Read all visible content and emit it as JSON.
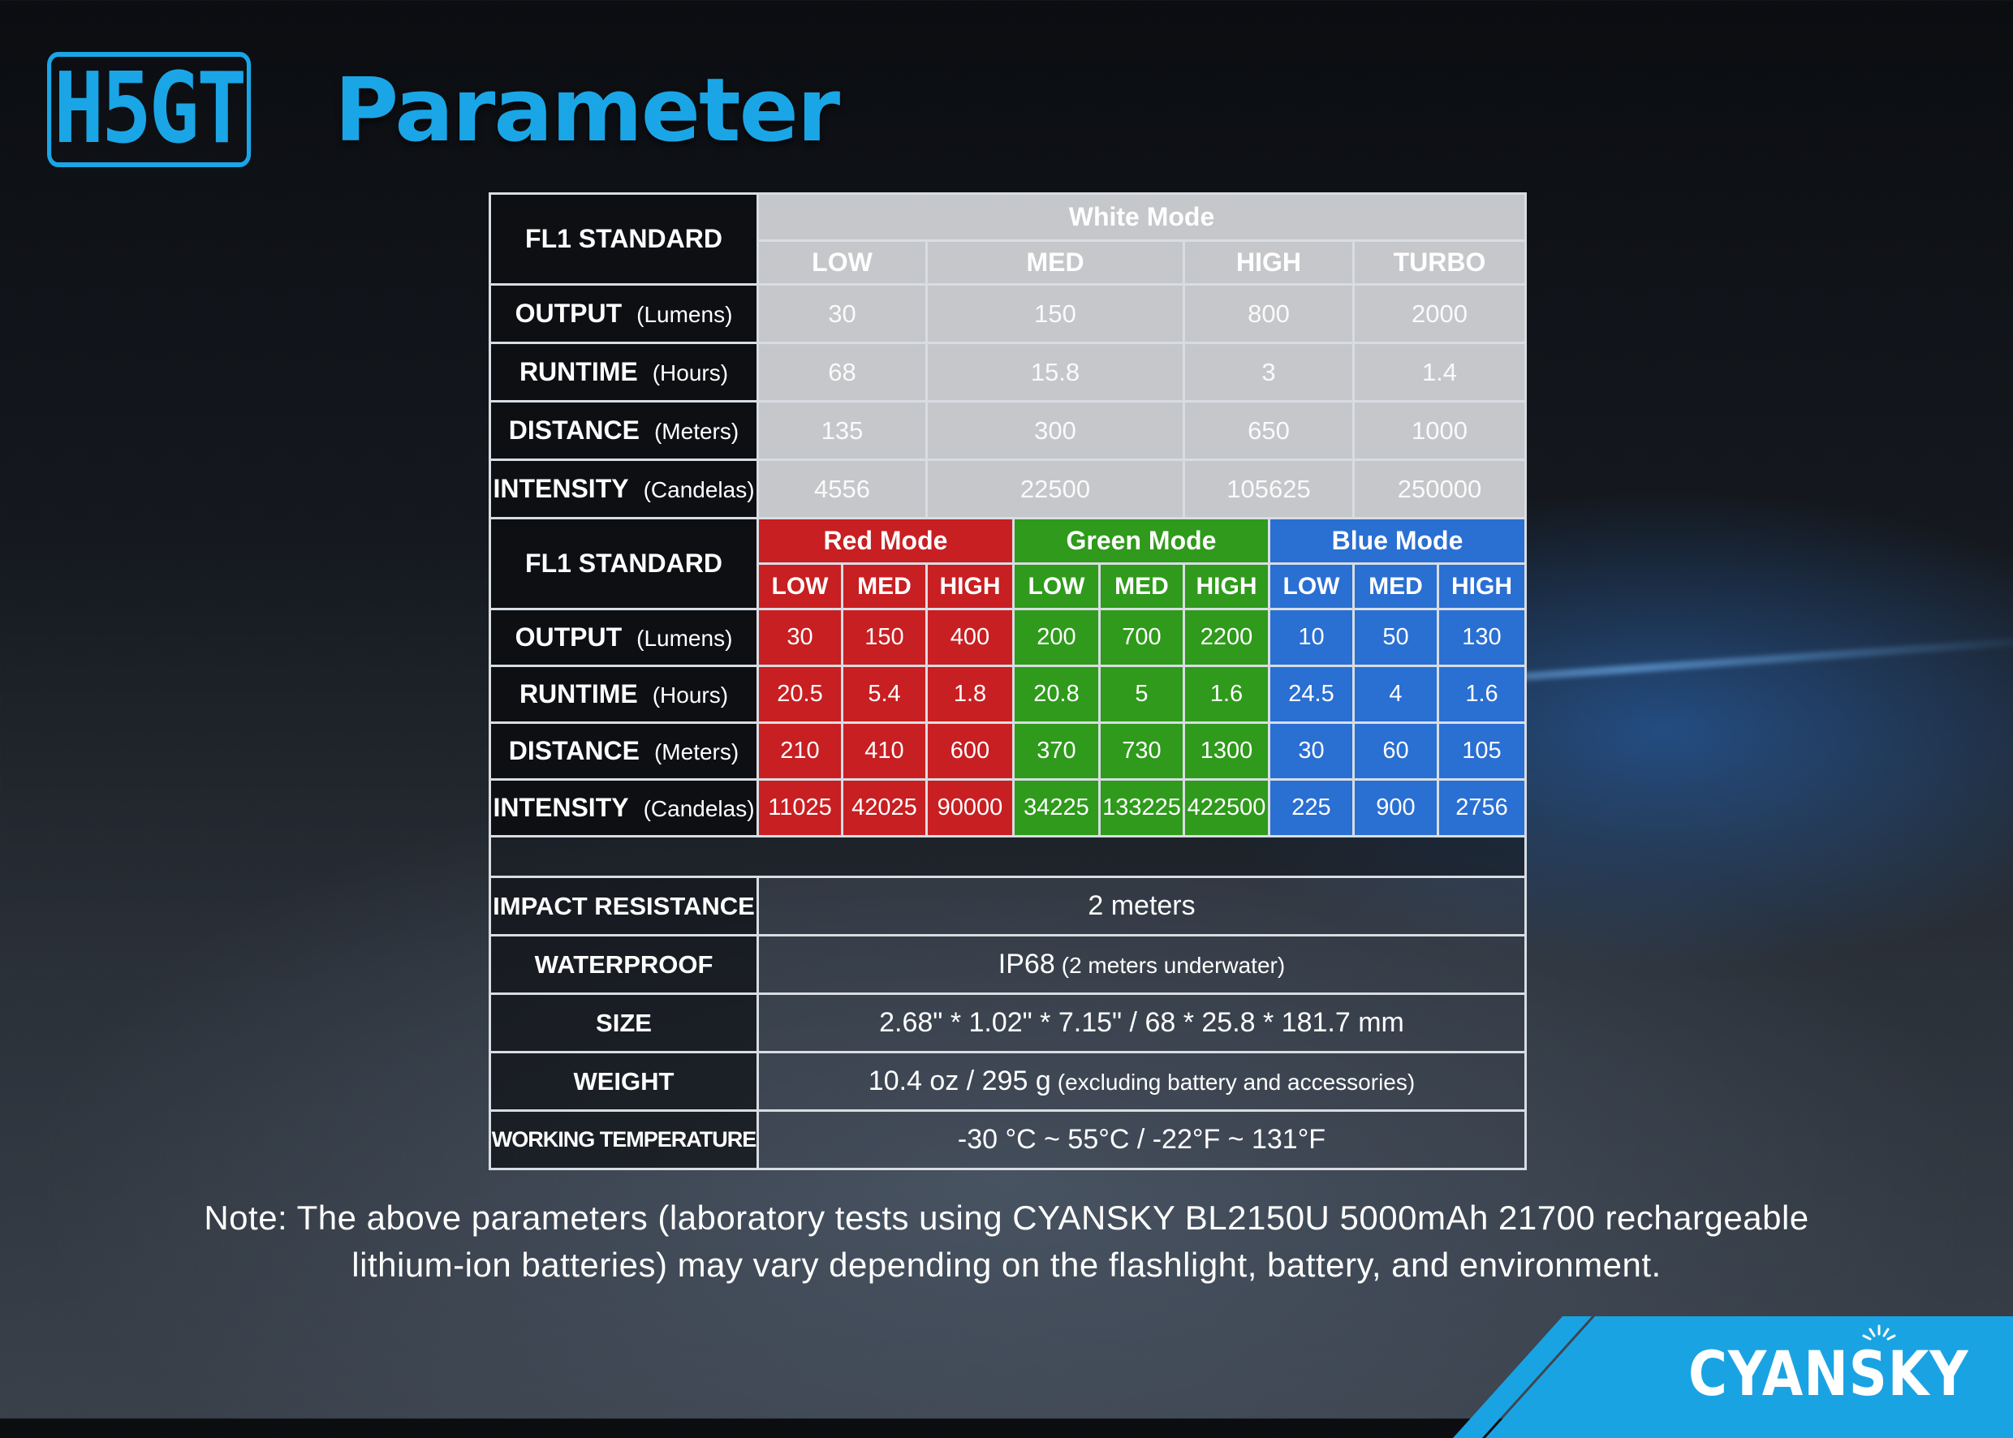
{
  "header": {
    "model": "H5GT",
    "title": "Parameter"
  },
  "table1": {
    "standard": "FL1 STANDARD",
    "mode": "White Mode",
    "levels": [
      "LOW",
      "MED",
      "HIGH",
      "TURBO"
    ],
    "rows": [
      {
        "label": "OUTPUT",
        "unit": "(Lumens)",
        "values": [
          "30",
          "150",
          "800",
          "2000"
        ]
      },
      {
        "label": "RUNTIME",
        "unit": "(Hours)",
        "values": [
          "68",
          "15.8",
          "3",
          "1.4"
        ]
      },
      {
        "label": "DISTANCE",
        "unit": "(Meters)",
        "values": [
          "135",
          "300",
          "650",
          "1000"
        ]
      },
      {
        "label": "INTENSITY",
        "unit": "(Candelas)",
        "values": [
          "4556",
          "22500",
          "105625",
          "250000"
        ]
      }
    ]
  },
  "table2": {
    "standard": "FL1 STANDARD",
    "modes": [
      {
        "name": "Red Mode",
        "color": "#c81f22"
      },
      {
        "name": "Green Mode",
        "color": "#2f9a1b"
      },
      {
        "name": "Blue Mode",
        "color": "#2a6fd2"
      }
    ],
    "levels": [
      "LOW",
      "MED",
      "HIGH",
      "LOW",
      "MED",
      "HIGH",
      "LOW",
      "MED",
      "HIGH"
    ],
    "rows": [
      {
        "label": "OUTPUT",
        "unit": "(Lumens)",
        "values": [
          "30",
          "150",
          "400",
          "200",
          "700",
          "2200",
          "10",
          "50",
          "130"
        ]
      },
      {
        "label": "RUNTIME",
        "unit": "(Hours)",
        "values": [
          "20.5",
          "5.4",
          "1.8",
          "20.8",
          "5",
          "1.6",
          "24.5",
          "4",
          "1.6"
        ]
      },
      {
        "label": "DISTANCE",
        "unit": "(Meters)",
        "values": [
          "210",
          "410",
          "600",
          "370",
          "730",
          "1300",
          "30",
          "60",
          "105"
        ]
      },
      {
        "label": "INTENSITY",
        "unit": "(Candelas)",
        "values": [
          "11025",
          "42025",
          "90000",
          "34225",
          "133225",
          "422500",
          "225",
          "900",
          "2756"
        ]
      }
    ]
  },
  "properties": [
    {
      "label": "IMPACT RESISTANCE",
      "value": "2 meters",
      "sub": ""
    },
    {
      "label": "WATERPROOF",
      "value": "IP68",
      "sub": "(2 meters underwater)"
    },
    {
      "label": "SIZE",
      "value": "2.68\" * 1.02\" * 7.15\" / 68 * 25.8 * 181.7 mm",
      "sub": ""
    },
    {
      "label": "WEIGHT",
      "value": "10.4 oz / 295 g",
      "sub": "(excluding battery and accessories)"
    },
    {
      "label": "WORKING TEMPERATURE",
      "value": "-30 °C ~ 55°C / -22°F ~ 131°F",
      "sub": ""
    }
  ],
  "note": {
    "line1": "Note: The above parameters (laboratory tests using CYANSKY BL2150U 5000mAh 21700 rechargeable",
    "line2": "lithium-ion batteries) may vary depending on the flashlight, battery, and environment."
  },
  "brand": "CYANSKY",
  "colors": {
    "accent": "#1aa6e6",
    "white_mode": "#c5c7ca",
    "red": "#c81f22",
    "green": "#2f9a1b",
    "blue": "#2a6fd2"
  }
}
